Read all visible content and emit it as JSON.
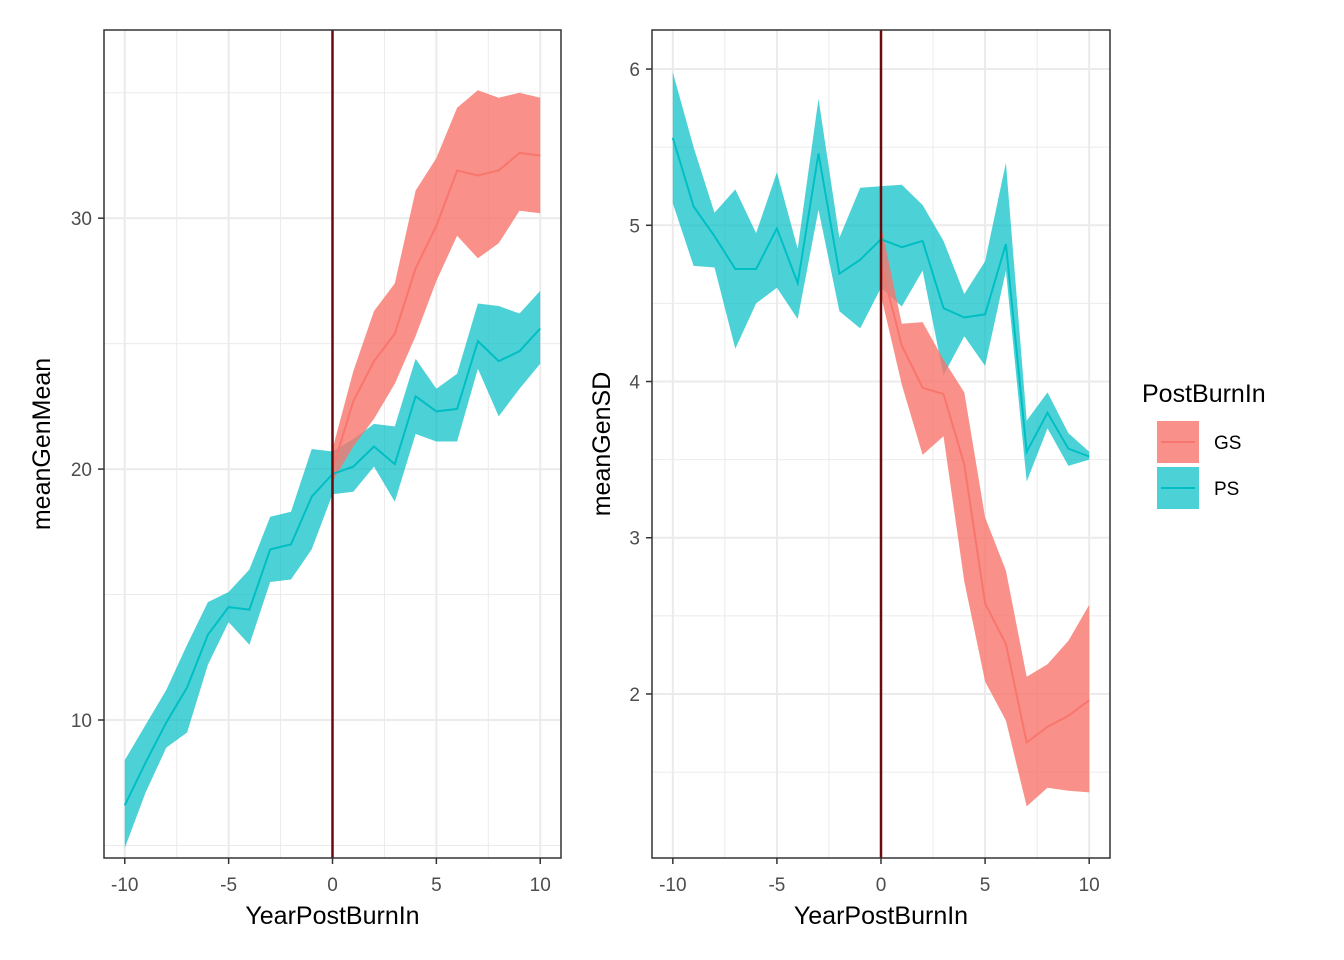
{
  "chart_data": [
    {
      "type": "area",
      "xlabel": "YearPostBurnIn",
      "ylabel": "meanGenMean",
      "xlim": [
        -11,
        11
      ],
      "ylim": [
        4.5,
        37.5
      ],
      "xticks": [
        -10,
        -5,
        0,
        5,
        10
      ],
      "yticks": [
        10,
        20,
        30
      ],
      "grid": true,
      "vline": 0,
      "series": [
        {
          "name": "GS",
          "x": [
            0,
            1,
            2,
            3,
            4,
            5,
            6,
            7,
            8,
            9,
            10
          ],
          "mean": [
            20.0,
            22.7,
            24.3,
            25.4,
            28.0,
            29.7,
            31.9,
            31.7,
            31.9,
            32.6,
            32.5
          ],
          "lower": [
            19.5,
            20.9,
            22.0,
            23.4,
            25.3,
            27.5,
            29.3,
            28.4,
            29.0,
            30.3,
            30.2
          ],
          "upper": [
            20.8,
            23.9,
            26.3,
            27.4,
            31.1,
            32.4,
            34.4,
            35.1,
            34.8,
            35.0,
            34.8
          ]
        },
        {
          "name": "PS",
          "x": [
            -10,
            -9,
            -8,
            -7,
            -6,
            -5,
            -4,
            -3,
            -2,
            -1,
            0,
            1,
            2,
            3,
            4,
            5,
            6,
            7,
            8,
            9,
            10
          ],
          "mean": [
            6.6,
            8.3,
            9.9,
            11.3,
            13.4,
            14.5,
            14.4,
            16.8,
            17.0,
            18.9,
            19.8,
            20.1,
            20.9,
            20.2,
            22.9,
            22.3,
            22.4,
            25.1,
            24.3,
            24.7,
            25.6
          ],
          "lower": [
            4.9,
            7.1,
            8.9,
            9.5,
            12.2,
            13.9,
            13.0,
            15.5,
            15.6,
            16.8,
            19.0,
            19.1,
            20.1,
            18.7,
            21.4,
            21.1,
            21.1,
            24.0,
            22.1,
            23.2,
            24.2
          ],
          "upper": [
            8.4,
            9.8,
            11.2,
            13.0,
            14.7,
            15.1,
            16.0,
            18.1,
            18.3,
            20.8,
            20.7,
            21.2,
            21.8,
            21.7,
            24.4,
            23.2,
            23.8,
            26.6,
            26.5,
            26.2,
            27.1
          ]
        }
      ]
    },
    {
      "type": "area",
      "xlabel": "YearPostBurnIn",
      "ylabel": "meanGenSD",
      "xlim": [
        -11,
        11
      ],
      "ylim": [
        0.95,
        6.25
      ],
      "xticks": [
        -10,
        -5,
        0,
        5,
        10
      ],
      "yticks": [
        2,
        3,
        4,
        5,
        6
      ],
      "grid": true,
      "vline": 0,
      "series": [
        {
          "name": "GS",
          "x": [
            0,
            1,
            2,
            3,
            4,
            5,
            6,
            7,
            8,
            9,
            10
          ],
          "mean": [
            4.75,
            4.23,
            3.96,
            3.92,
            3.47,
            2.58,
            2.32,
            1.69,
            1.79,
            1.86,
            1.96
          ],
          "lower": [
            4.55,
            3.98,
            3.53,
            3.65,
            2.72,
            2.08,
            1.83,
            1.28,
            1.4,
            1.38,
            1.37
          ],
          "upper": [
            5.0,
            4.37,
            4.38,
            4.14,
            3.93,
            3.13,
            2.79,
            2.11,
            2.19,
            2.34,
            2.57
          ]
        },
        {
          "name": "PS",
          "x": [
            -10,
            -9,
            -8,
            -7,
            -6,
            -5,
            -4,
            -3,
            -2,
            -1,
            0,
            1,
            2,
            3,
            4,
            5,
            6,
            7,
            8,
            9,
            10
          ],
          "mean": [
            5.56,
            5.12,
            4.93,
            4.72,
            4.72,
            4.98,
            4.63,
            5.46,
            4.69,
            4.78,
            4.91,
            4.86,
            4.9,
            4.47,
            4.41,
            4.43,
            4.88,
            3.55,
            3.8,
            3.57,
            3.52
          ],
          "lower": [
            5.14,
            4.74,
            4.73,
            4.21,
            4.5,
            4.6,
            4.4,
            5.1,
            4.45,
            4.34,
            4.6,
            4.48,
            4.71,
            4.04,
            4.29,
            4.1,
            4.71,
            3.36,
            3.7,
            3.46,
            3.5
          ],
          "upper": [
            5.98,
            5.5,
            5.08,
            5.23,
            4.95,
            5.34,
            4.85,
            5.81,
            4.92,
            5.24,
            5.25,
            5.26,
            5.13,
            4.9,
            4.56,
            4.77,
            5.4,
            3.75,
            3.93,
            3.67,
            3.55
          ]
        }
      ]
    }
  ],
  "legend": {
    "title": "PostBurnIn",
    "items": [
      {
        "label": "GS",
        "color": "#F8766D"
      },
      {
        "label": "PS",
        "color": "#00BFC4"
      }
    ]
  },
  "colors": {
    "GS": "#F8766D",
    "PS": "#00BFC4",
    "vline": "#6B0A0A",
    "grid": "#EBEBEB",
    "panel_border": "#333333"
  }
}
